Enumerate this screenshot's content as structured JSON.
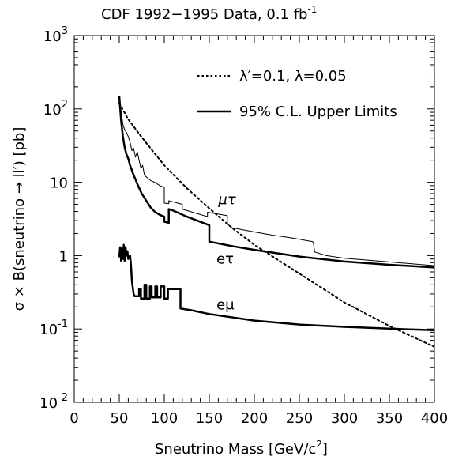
{
  "chart_data": {
    "type": "line",
    "title": "CDF 1992−1995 Data, 0.1 fb",
    "title_superscript": "-1",
    "xlabel": "Sneutrino Mass [GeV/c",
    "xlabel_superscript": "2",
    "xlabel_suffix": "]",
    "ylabel": "σ × B(sneutrino → ll′) [pb]",
    "xlim": [
      0,
      400
    ],
    "ylim": [
      0.01,
      1000
    ],
    "yscale": "log",
    "grid": false,
    "legend_position": "top-right",
    "x_ticks": [
      {
        "value": 0,
        "label": "0"
      },
      {
        "value": 50,
        "label": "50"
      },
      {
        "value": 100,
        "label": "100"
      },
      {
        "value": 150,
        "label": "150"
      },
      {
        "value": 200,
        "label": "200"
      },
      {
        "value": 250,
        "label": "250"
      },
      {
        "value": 300,
        "label": "300"
      },
      {
        "value": 350,
        "label": "350"
      },
      {
        "value": 400,
        "label": "400"
      }
    ],
    "y_ticks": [
      {
        "value": 0.01,
        "base": "10",
        "exp": "-2",
        "label": ""
      },
      {
        "value": 0.1,
        "base": "10",
        "exp": "-1",
        "label": ""
      },
      {
        "value": 1,
        "base": "",
        "exp": "",
        "label": "1"
      },
      {
        "value": 10,
        "base": "",
        "exp": "",
        "label": "10"
      },
      {
        "value": 100,
        "base": "10",
        "exp": "2",
        "label": ""
      },
      {
        "value": 1000,
        "base": "10",
        "exp": "3",
        "label": ""
      }
    ],
    "legend": [
      {
        "label": "λ′=0.1, λ=0.05",
        "style": "dotted"
      },
      {
        "label": "95% C.L. Upper Limits",
        "style": "solid"
      }
    ],
    "annotations": [
      {
        "text": "μτ",
        "x": 160,
        "y": 5.0
      },
      {
        "text": "eτ",
        "x": 158,
        "y": 0.78
      },
      {
        "text": "eμ",
        "x": 158,
        "y": 0.185
      }
    ],
    "series": [
      {
        "name": "λ′=0.1, λ=0.05",
        "style": "dotted",
        "width": 2,
        "x": [
          50,
          60,
          75,
          100,
          125,
          150,
          175,
          200,
          250,
          300,
          350,
          400
        ],
        "y": [
          120,
          72,
          41,
          17,
          8.3,
          4.4,
          2.4,
          1.4,
          0.57,
          0.23,
          0.11,
          0.057
        ]
      },
      {
        "style": "solid",
        "width": 1,
        "x": [
          50,
          52,
          54,
          56,
          58,
          60,
          62,
          64,
          66,
          68,
          70,
          72,
          74,
          76,
          78,
          80,
          85,
          90,
          95,
          100,
          100,
          105,
          105,
          120,
          120,
          148,
          148,
          170,
          170,
          175,
          200,
          220,
          240,
          265,
          266,
          267,
          280,
          300,
          350,
          400
        ],
        "y": [
          150,
          95,
          62,
          52,
          48,
          42,
          35,
          27,
          29,
          22,
          26,
          20,
          15.5,
          17,
          12.5,
          11.8,
          10.5,
          9.9,
          9.0,
          8.5,
          5.2,
          5.1,
          5.6,
          5.0,
          4.3,
          3.4,
          3.9,
          3.5,
          2.7,
          2.4,
          2.1,
          1.9,
          1.75,
          1.55,
          1.4,
          1.12,
          1.0,
          0.92,
          0.82,
          0.73
        ]
      },
      {
        "style": "solid",
        "width": 2.5,
        "x": [
          50,
          52,
          54,
          56,
          58,
          60,
          62,
          64,
          66,
          68,
          70,
          75,
          80,
          85,
          90,
          95,
          100,
          100,
          105,
          105,
          110,
          125,
          150,
          150,
          175,
          200,
          250,
          300,
          350,
          400
        ],
        "y": [
          150,
          70,
          42,
          30,
          24,
          21,
          17,
          14.5,
          12.5,
          11,
          9.5,
          7.0,
          5.6,
          4.5,
          3.9,
          3.6,
          3.4,
          2.9,
          2.8,
          4.3,
          4.1,
          3.4,
          2.6,
          1.55,
          1.35,
          1.2,
          0.97,
          0.83,
          0.75,
          0.69
        ]
      },
      {
        "style": "solid",
        "width": 2.5,
        "x": [
          50,
          51,
          52,
          53,
          54,
          55,
          56,
          57,
          58,
          59,
          60,
          62,
          63,
          64,
          66,
          67,
          72,
          72,
          74,
          74,
          78,
          78,
          80,
          80,
          84,
          84,
          86,
          86,
          90,
          90,
          92,
          92,
          96,
          96,
          100,
          100,
          104,
          104,
          118,
          118,
          130,
          150,
          200,
          250,
          300,
          350,
          400
        ],
        "y": [
          0.95,
          1.3,
          0.85,
          1.25,
          0.9,
          1.4,
          0.85,
          1.3,
          1.0,
          1.15,
          0.9,
          1.0,
          0.75,
          0.45,
          0.3,
          0.28,
          0.28,
          0.35,
          0.35,
          0.26,
          0.26,
          0.4,
          0.4,
          0.26,
          0.26,
          0.38,
          0.38,
          0.27,
          0.27,
          0.38,
          0.38,
          0.27,
          0.27,
          0.38,
          0.38,
          0.26,
          0.26,
          0.35,
          0.35,
          0.19,
          0.18,
          0.16,
          0.13,
          0.115,
          0.107,
          0.101,
          0.096
        ]
      }
    ]
  }
}
